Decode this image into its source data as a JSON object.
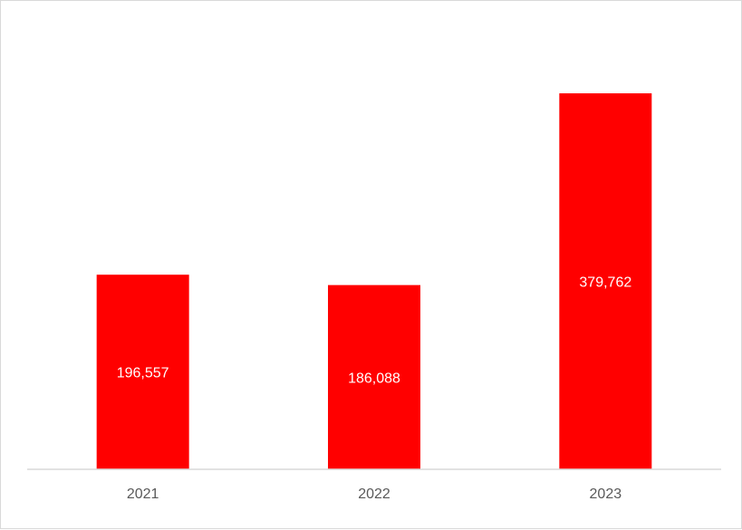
{
  "chart_data": {
    "type": "bar",
    "categories": [
      "2021",
      "2022",
      "2023"
    ],
    "values": [
      196557,
      186088,
      379762
    ],
    "data_labels": [
      "196,557",
      "186,088",
      "379,762"
    ],
    "title": "",
    "xlabel": "",
    "ylabel": "",
    "ylim": [
      0,
      400000
    ],
    "grid": false,
    "legend": "none",
    "colors": {
      "bar": "#ff0000",
      "axis": "#d9d9d9",
      "tick_text": "#595959",
      "data_label_text": "#ffffff"
    }
  }
}
